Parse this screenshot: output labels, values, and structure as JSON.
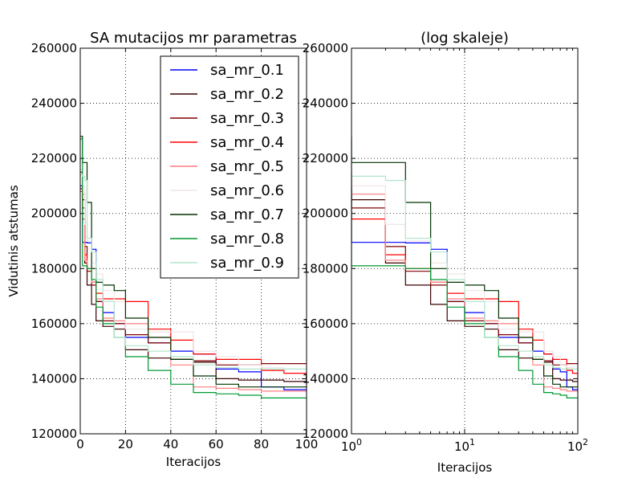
{
  "chart_data": [
    {
      "type": "line",
      "title": "SA mutacijos mr parametras",
      "xlabel": "Iteracijos",
      "ylabel": "Vidutinis atstumas",
      "xscale": "linear",
      "xlim": [
        0,
        100
      ],
      "ylim": [
        120000,
        260000
      ],
      "xticks": [
        "0",
        "20",
        "40",
        "60",
        "80",
        "100"
      ],
      "yticks": [
        "120000",
        "140000",
        "160000",
        "180000",
        "200000",
        "220000",
        "240000",
        "260000"
      ],
      "grid": true,
      "legend_position": "upper-right",
      "x": [
        0,
        1,
        2,
        3,
        5,
        7,
        10,
        15,
        20,
        30,
        40,
        50,
        60,
        70,
        80,
        90,
        100
      ],
      "series": [
        {
          "name": "sa_mr_0.1",
          "color": "#0000ff",
          "values": [
            210000,
            189500,
            189500,
            189300,
            187000,
            168000,
            164000,
            160000,
            155000,
            153000,
            150000,
            149000,
            143500,
            142500,
            137000,
            136000,
            135000
          ]
        },
        {
          "name": "sa_mr_0.2",
          "color": "#3d0000",
          "values": [
            215000,
            205000,
            182000,
            174000,
            167000,
            161000,
            159000,
            158000,
            150500,
            147500,
            147000,
            146000,
            140000,
            139500,
            139500,
            139000,
            139000
          ]
        },
        {
          "name": "sa_mr_0.3",
          "color": "#800000",
          "values": [
            209000,
            202000,
            188000,
            179000,
            174000,
            168000,
            161000,
            160000,
            156000,
            153000,
            147000,
            146500,
            145000,
            145000,
            145500,
            145500,
            145500
          ]
        },
        {
          "name": "sa_mr_0.4",
          "color": "#ff0000",
          "values": [
            208000,
            198000,
            185000,
            180000,
            175000,
            171000,
            169000,
            169000,
            168000,
            158000,
            154000,
            149000,
            147000,
            147000,
            143000,
            142000,
            136000
          ]
        },
        {
          "name": "sa_mr_0.5",
          "color": "#ff7f7f",
          "values": [
            214000,
            207000,
            183000,
            180000,
            175000,
            169000,
            162000,
            161000,
            160000,
            155000,
            145000,
            137000,
            136500,
            136000,
            135500,
            135500,
            135500
          ]
        },
        {
          "name": "sa_mr_0.6",
          "color": "#f0e6e6",
          "values": [
            216000,
            210000,
            196000,
            190000,
            182000,
            178000,
            172000,
            168000,
            158000,
            157000,
            157000,
            150000,
            148000,
            145000,
            144000,
            143500,
            143500
          ]
        },
        {
          "name": "sa_mr_0.7",
          "color": "#003300",
          "values": [
            228000,
            218500,
            218500,
            204000,
            180000,
            175000,
            174000,
            172000,
            162000,
            155000,
            147000,
            141000,
            138000,
            137000,
            137000,
            137000,
            137000
          ]
        },
        {
          "name": "sa_mr_0.8",
          "color": "#009933",
          "values": [
            227000,
            181000,
            181000,
            180000,
            176000,
            166000,
            160000,
            155000,
            148000,
            143000,
            138000,
            135000,
            134500,
            134000,
            133000,
            133000,
            133000
          ]
        },
        {
          "name": "sa_mr_0.9",
          "color": "#b3e6cc",
          "values": [
            214000,
            213500,
            212000,
            191000,
            186000,
            176000,
            168000,
            155000,
            152000,
            150000,
            148000,
            145000,
            144000,
            143500,
            143500,
            143500,
            143500
          ]
        }
      ]
    },
    {
      "type": "line",
      "title": "(log skaleje)",
      "xlabel": "Iteracijos",
      "xscale": "log",
      "xlim": [
        1,
        100
      ],
      "ylim": [
        120000,
        260000
      ],
      "xticks": [
        {
          "base": "10",
          "exp": "0"
        },
        {
          "base": "10",
          "exp": "1"
        },
        {
          "base": "10",
          "exp": "2"
        }
      ],
      "yticks": [
        "120000",
        "140000",
        "160000",
        "180000",
        "200000",
        "220000",
        "240000",
        "260000"
      ],
      "grid": true,
      "note": "same series as left panel, shown on logarithmic x axis"
    }
  ]
}
